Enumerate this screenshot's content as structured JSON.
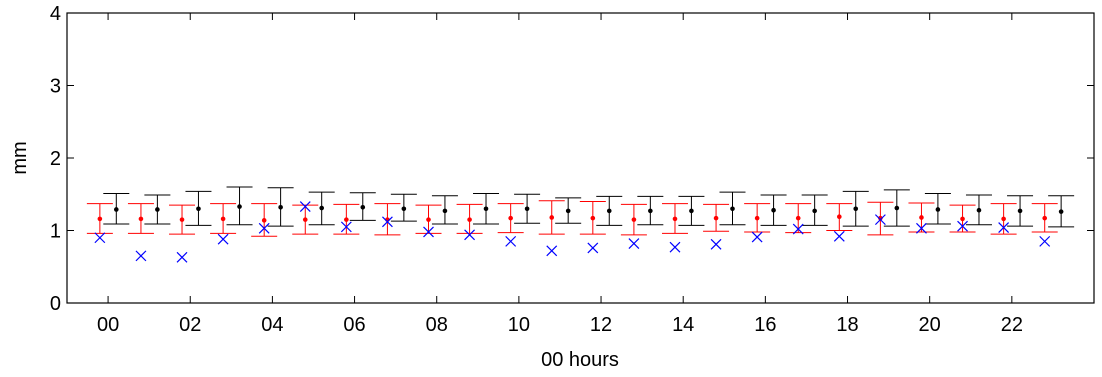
{
  "chart_data": {
    "type": "scatter",
    "title": "",
    "xlabel": "00 hours",
    "ylabel": "mm",
    "xlim": [
      -1,
      24
    ],
    "ylim": [
      0,
      4
    ],
    "x_ticks": [
      0,
      2,
      4,
      6,
      8,
      10,
      12,
      14,
      16,
      18,
      20,
      22
    ],
    "x_tick_labels": [
      "00",
      "02",
      "04",
      "06",
      "08",
      "10",
      "12",
      "14",
      "16",
      "18",
      "20",
      "22"
    ],
    "y_ticks": [
      0,
      1,
      2,
      3,
      4
    ],
    "y_tick_labels": [
      "0",
      "1",
      "2",
      "3",
      "4"
    ],
    "grid": false,
    "x": [
      0,
      1,
      2,
      3,
      4,
      5,
      6,
      7,
      8,
      9,
      10,
      11,
      12,
      13,
      14,
      15,
      16,
      17,
      18,
      19,
      20,
      21,
      22,
      23
    ],
    "series": [
      {
        "color": "#ff0000",
        "marker": "dot",
        "x_offset": -0.2,
        "values": [
          1.16,
          1.16,
          1.15,
          1.16,
          1.14,
          1.15,
          1.15,
          1.15,
          1.15,
          1.15,
          1.17,
          1.18,
          1.17,
          1.15,
          1.16,
          1.17,
          1.17,
          1.17,
          1.19,
          1.17,
          1.18,
          1.16,
          1.16,
          1.17
        ],
        "lower": [
          0.96,
          0.96,
          0.95,
          0.96,
          0.92,
          0.95,
          0.95,
          0.94,
          0.96,
          0.96,
          0.97,
          0.95,
          0.95,
          0.94,
          0.96,
          0.99,
          0.98,
          0.97,
          1.0,
          0.94,
          0.98,
          0.98,
          0.95,
          0.98
        ],
        "upper": [
          1.37,
          1.37,
          1.35,
          1.37,
          1.37,
          1.35,
          1.36,
          1.37,
          1.35,
          1.36,
          1.37,
          1.41,
          1.4,
          1.36,
          1.37,
          1.36,
          1.37,
          1.37,
          1.37,
          1.39,
          1.38,
          1.35,
          1.37,
          1.37
        ]
      },
      {
        "color": "#000000",
        "marker": "dot",
        "x_offset": 0.2,
        "values": [
          1.29,
          1.29,
          1.3,
          1.33,
          1.32,
          1.31,
          1.32,
          1.3,
          1.27,
          1.3,
          1.3,
          1.27,
          1.27,
          1.27,
          1.27,
          1.3,
          1.28,
          1.27,
          1.3,
          1.31,
          1.29,
          1.28,
          1.27,
          1.26
        ],
        "lower": [
          1.09,
          1.09,
          1.07,
          1.08,
          1.06,
          1.08,
          1.14,
          1.13,
          1.09,
          1.09,
          1.1,
          1.1,
          1.07,
          1.08,
          1.07,
          1.08,
          1.07,
          1.07,
          1.06,
          1.06,
          1.09,
          1.08,
          1.06,
          1.05
        ],
        "upper": [
          1.51,
          1.49,
          1.54,
          1.6,
          1.59,
          1.53,
          1.52,
          1.5,
          1.48,
          1.51,
          1.5,
          1.45,
          1.47,
          1.47,
          1.47,
          1.53,
          1.49,
          1.49,
          1.54,
          1.56,
          1.51,
          1.49,
          1.48,
          1.48
        ]
      },
      {
        "color": "#0000ff",
        "marker": "x",
        "x_offset": -0.2,
        "values": [
          0.9,
          0.65,
          0.63,
          0.88,
          1.03,
          1.33,
          1.05,
          1.12,
          0.98,
          0.94,
          0.85,
          0.72,
          0.76,
          0.82,
          0.77,
          0.81,
          0.91,
          1.02,
          0.92,
          1.15,
          1.03,
          1.06,
          1.04,
          0.85
        ]
      }
    ]
  }
}
